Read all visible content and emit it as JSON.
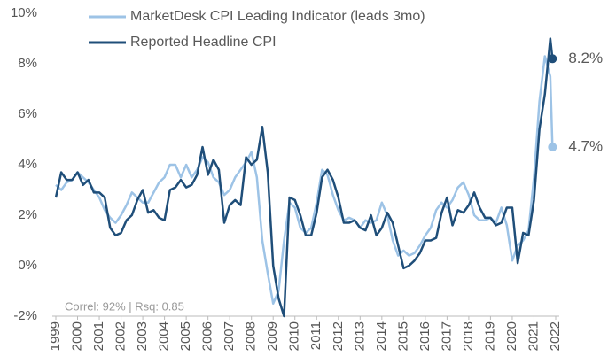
{
  "chart_data": {
    "type": "line",
    "x": [
      1999.0,
      1999.25,
      1999.5,
      1999.75,
      2000.0,
      2000.25,
      2000.5,
      2000.75,
      2001.0,
      2001.25,
      2001.5,
      2001.75,
      2002.0,
      2002.25,
      2002.5,
      2002.75,
      2003.0,
      2003.25,
      2003.5,
      2003.75,
      2004.0,
      2004.25,
      2004.5,
      2004.75,
      2005.0,
      2005.25,
      2005.5,
      2005.75,
      2006.0,
      2006.25,
      2006.5,
      2006.75,
      2007.0,
      2007.25,
      2007.5,
      2007.75,
      2008.0,
      2008.25,
      2008.5,
      2008.75,
      2009.0,
      2009.25,
      2009.5,
      2009.75,
      2010.0,
      2010.25,
      2010.5,
      2010.75,
      2011.0,
      2011.25,
      2011.5,
      2011.75,
      2012.0,
      2012.25,
      2012.5,
      2012.75,
      2013.0,
      2013.25,
      2013.5,
      2013.75,
      2014.0,
      2014.25,
      2014.5,
      2014.75,
      2015.0,
      2015.25,
      2015.5,
      2015.75,
      2016.0,
      2016.25,
      2016.5,
      2016.75,
      2017.0,
      2017.25,
      2017.5,
      2017.75,
      2018.0,
      2018.25,
      2018.5,
      2018.75,
      2019.0,
      2019.25,
      2019.5,
      2019.75,
      2020.0,
      2020.25,
      2020.5,
      2020.75,
      2021.0,
      2021.25,
      2021.5,
      2021.75,
      2021.85
    ],
    "series": [
      {
        "name": "MarketDesk CPI Leading Indicator (leads 3mo)",
        "color": "#9dc3e6",
        "end_label": "4.7%",
        "values": [
          3.2,
          3.0,
          3.3,
          3.4,
          3.7,
          3.5,
          3.3,
          3.0,
          2.7,
          2.2,
          1.9,
          1.7,
          2.0,
          2.4,
          2.9,
          2.7,
          2.5,
          2.5,
          2.9,
          3.3,
          3.5,
          4.0,
          4.0,
          3.5,
          4.0,
          3.5,
          3.8,
          4.3,
          4.1,
          3.5,
          3.3,
          2.8,
          3.0,
          3.5,
          3.8,
          4.1,
          4.5,
          3.5,
          1.0,
          -0.3,
          -1.5,
          -1.0,
          1.0,
          2.5,
          2.3,
          1.5,
          1.3,
          1.5,
          2.5,
          3.8,
          3.6,
          2.8,
          2.2,
          1.8,
          1.9,
          1.8,
          1.5,
          1.8,
          1.7,
          1.8,
          2.5,
          2.0,
          1.0,
          0.4,
          0.6,
          0.4,
          0.5,
          0.8,
          1.2,
          1.5,
          2.2,
          2.5,
          2.3,
          2.6,
          3.1,
          3.3,
          2.8,
          2.0,
          1.8,
          1.8,
          1.9,
          1.7,
          2.3,
          1.6,
          0.2,
          0.8,
          1.0,
          1.4,
          3.5,
          6.5,
          8.3,
          7.5,
          4.7
        ]
      },
      {
        "name": "Reported Headline CPI",
        "color": "#1f4e79",
        "end_label": "8.2%",
        "values": [
          2.7,
          3.7,
          3.4,
          3.4,
          3.7,
          3.2,
          3.4,
          2.9,
          2.9,
          2.7,
          1.5,
          1.2,
          1.3,
          1.8,
          2.0,
          2.6,
          3.0,
          2.1,
          2.2,
          1.9,
          1.8,
          3.0,
          3.1,
          3.4,
          3.1,
          3.2,
          3.6,
          4.7,
          3.6,
          4.2,
          3.8,
          1.7,
          2.4,
          2.6,
          2.4,
          4.3,
          4.0,
          4.2,
          5.5,
          3.7,
          0.0,
          -1.3,
          -2.0,
          2.7,
          2.6,
          2.0,
          1.2,
          1.2,
          2.1,
          3.5,
          3.8,
          3.4,
          2.7,
          1.7,
          1.7,
          1.8,
          1.5,
          1.4,
          2.0,
          1.2,
          1.5,
          2.1,
          1.7,
          0.8,
          -0.1,
          0.0,
          0.2,
          0.5,
          1.0,
          1.0,
          1.1,
          2.1,
          2.7,
          1.6,
          2.2,
          2.1,
          2.4,
          2.9,
          2.3,
          1.9,
          1.9,
          1.6,
          1.7,
          2.3,
          2.3,
          0.1,
          1.3,
          1.2,
          2.6,
          5.4,
          6.8,
          9.0,
          8.2
        ]
      }
    ],
    "xlim": [
      1999,
      2022
    ],
    "xticks": [
      1999,
      2000,
      2001,
      2002,
      2003,
      2004,
      2005,
      2006,
      2007,
      2008,
      2009,
      2010,
      2011,
      2012,
      2013,
      2014,
      2015,
      2016,
      2017,
      2018,
      2019,
      2020,
      2021,
      2022
    ],
    "ylim": [
      -2,
      10
    ],
    "yticks": [
      {
        "value": -2,
        "label": "-2%"
      },
      {
        "value": 0,
        "label": "0%"
      },
      {
        "value": 2,
        "label": "2%"
      },
      {
        "value": 4,
        "label": "4%"
      },
      {
        "value": 6,
        "label": "6%"
      },
      {
        "value": 8,
        "label": "8%"
      },
      {
        "value": 10,
        "label": "10%"
      }
    ],
    "grid": false,
    "legend": "upper left",
    "annotation": "Correl: 92%  |  Rsq: 0.85"
  }
}
